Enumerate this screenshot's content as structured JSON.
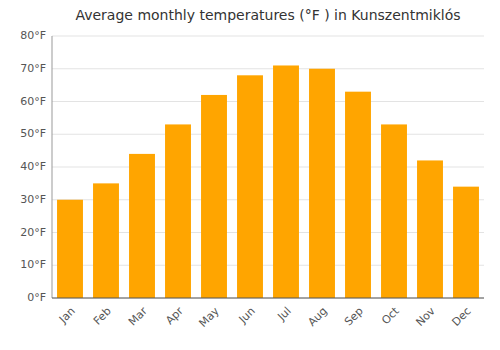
{
  "chart_data": {
    "type": "bar",
    "title": "Average monthly temperatures (°F ) in Kunszentmiklós",
    "categories": [
      "Jan",
      "Feb",
      "Mar",
      "Apr",
      "May",
      "Jun",
      "Jul",
      "Aug",
      "Sep",
      "Oct",
      "Nov",
      "Dec"
    ],
    "values": [
      30,
      35,
      44,
      53,
      62,
      68,
      71,
      70,
      63,
      53,
      42,
      34
    ],
    "color": "#FFA500",
    "ylim": [
      0,
      80
    ],
    "yticks": [
      {
        "value": 0,
        "label": "0°F"
      },
      {
        "value": 10,
        "label": "10°F"
      },
      {
        "value": 20,
        "label": "20°F"
      },
      {
        "value": 30,
        "label": "30°F"
      },
      {
        "value": 40,
        "label": "40°F"
      },
      {
        "value": 50,
        "label": "50°F"
      },
      {
        "value": 60,
        "label": "60°F"
      },
      {
        "value": 70,
        "label": "70°F"
      },
      {
        "value": 80,
        "label": "80°F"
      }
    ],
    "grid": true
  }
}
